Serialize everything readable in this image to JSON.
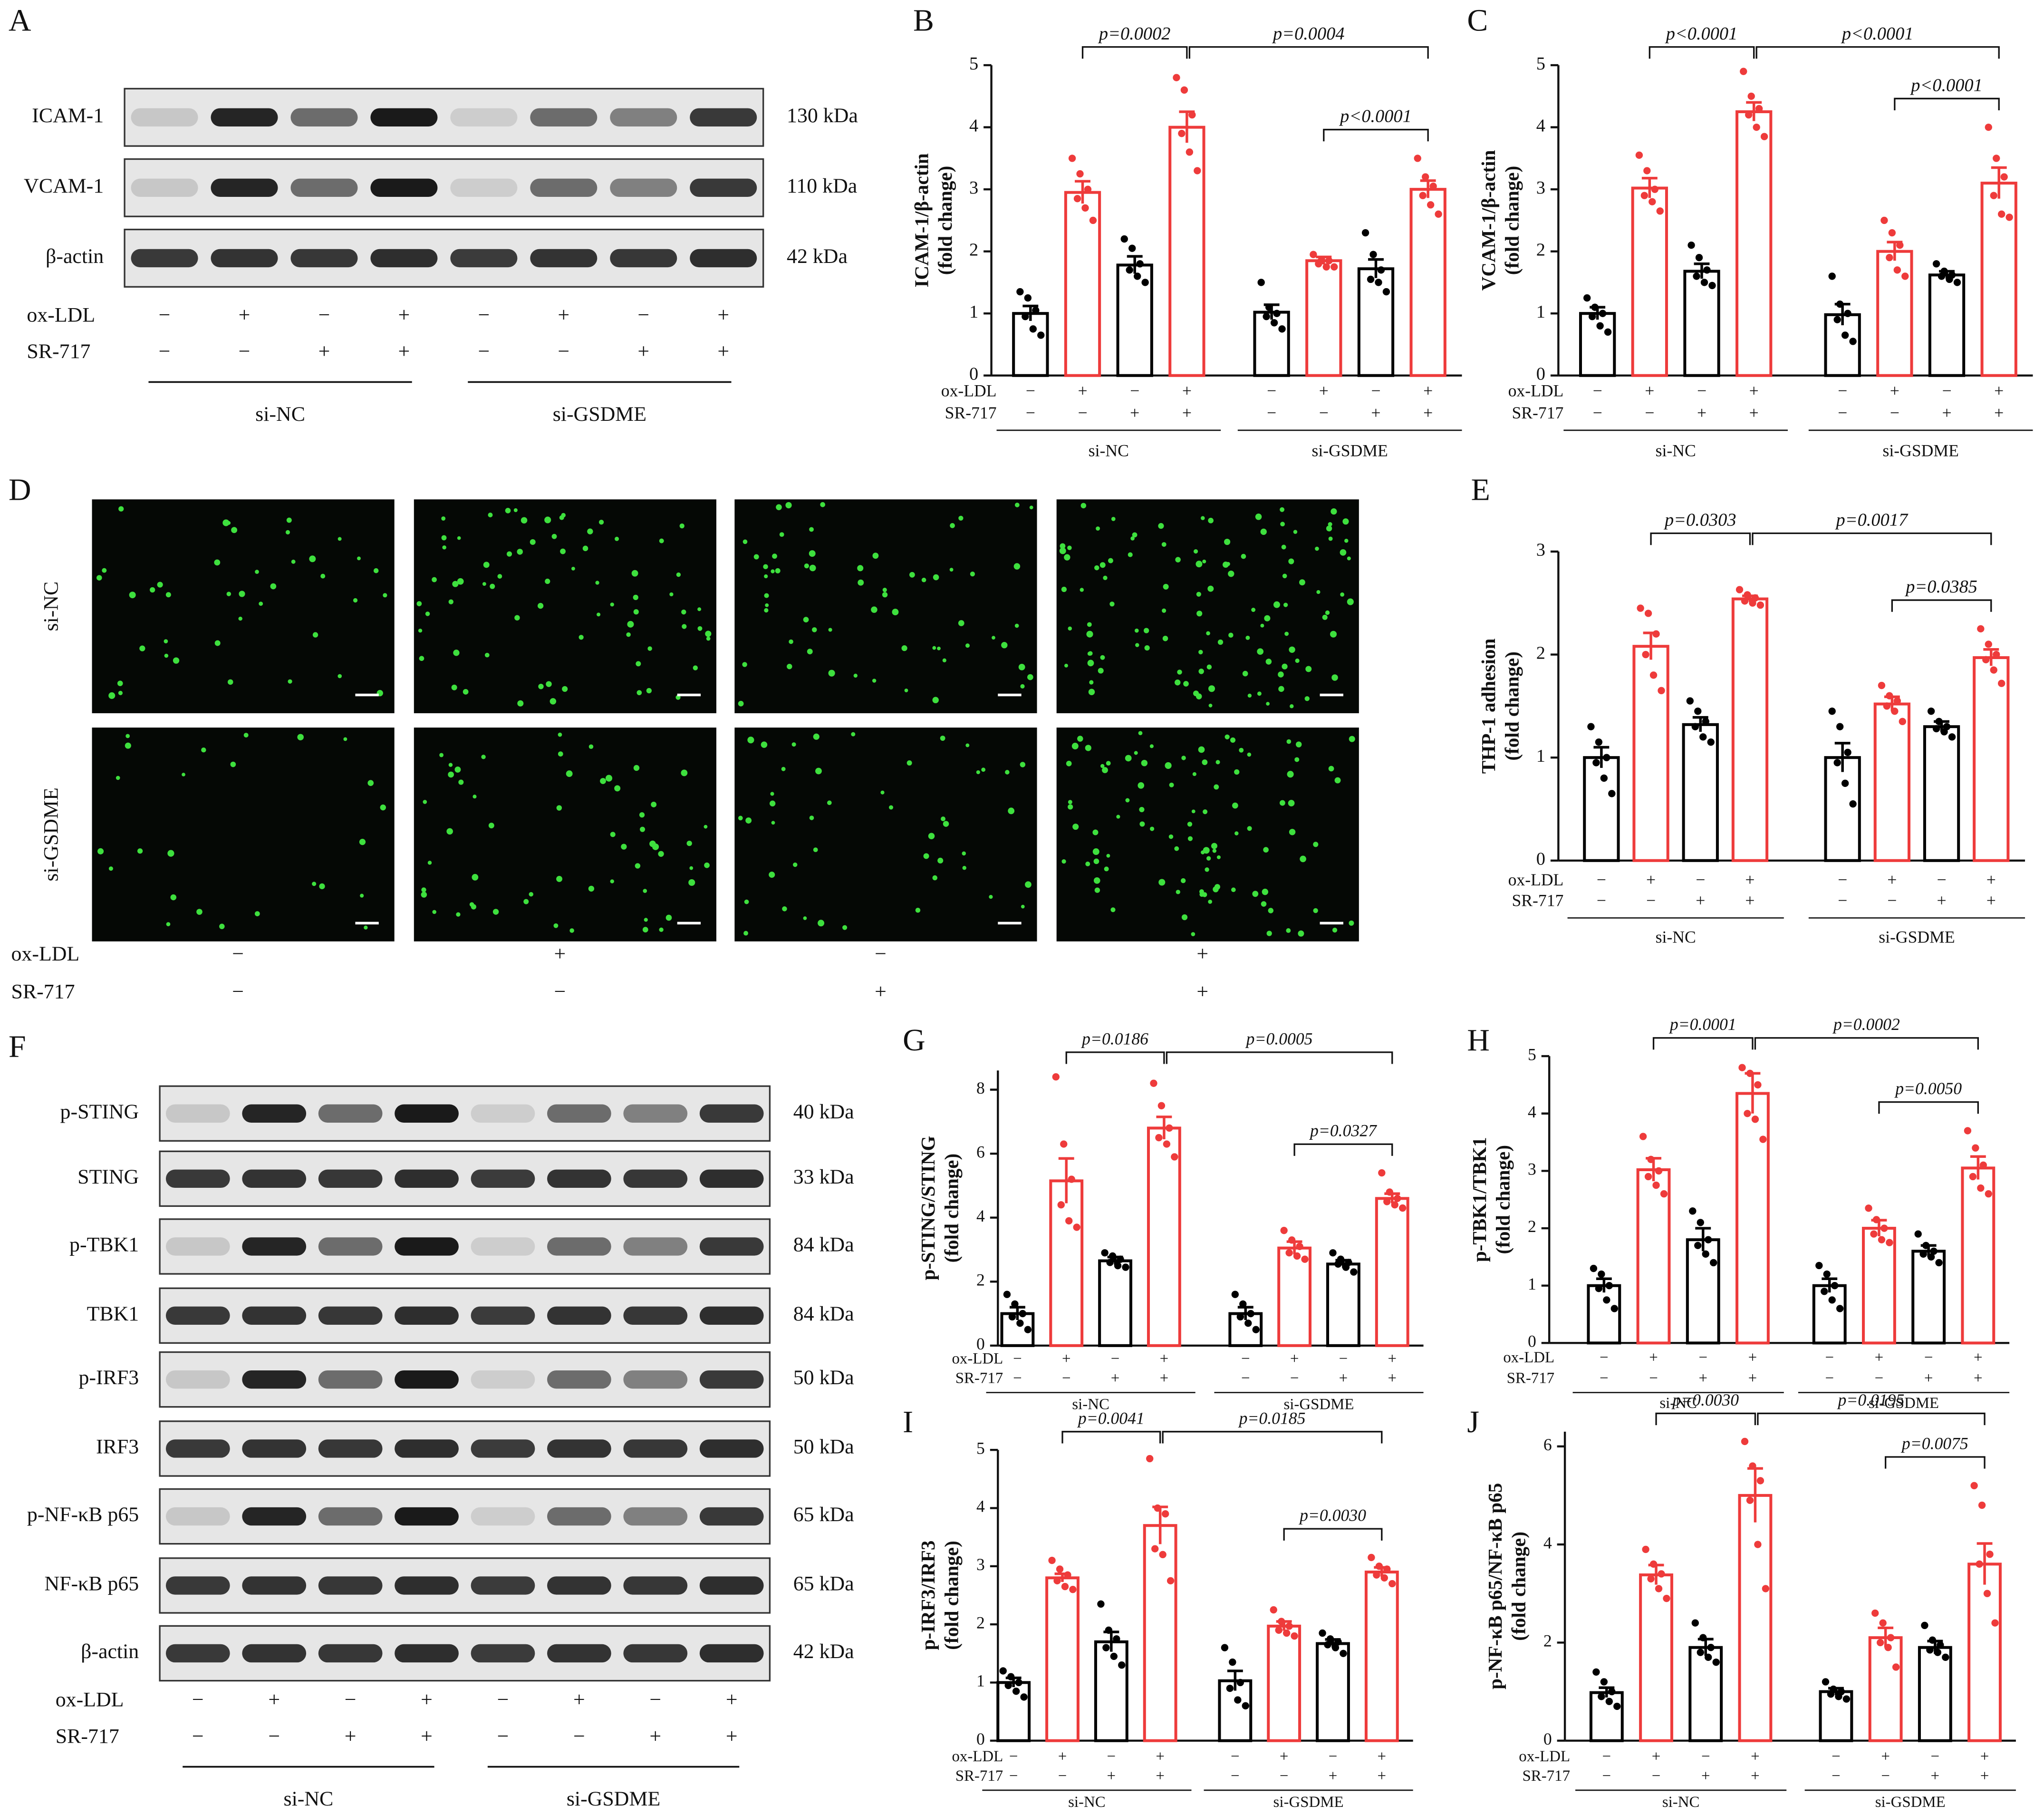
{
  "panel_a": {
    "label": "A",
    "blots": [
      {
        "name": "ICAM-1",
        "size": "130 kDa"
      },
      {
        "name": "VCAM-1",
        "size": "110 kDa"
      },
      {
        "name": "β-actin",
        "size": "42 kDa"
      }
    ],
    "treatments": [
      {
        "name": "ox-LDL",
        "signs": [
          "−",
          "+",
          "−",
          "+",
          "−",
          "+",
          "−",
          "+"
        ]
      },
      {
        "name": "SR-717",
        "signs": [
          "−",
          "−",
          "+",
          "+",
          "−",
          "−",
          "+",
          "+"
        ]
      }
    ],
    "groups": [
      "si-NC",
      "si-GSDME"
    ]
  },
  "panel_d": {
    "label": "D",
    "rows": [
      "si-NC",
      "si-GSDME"
    ],
    "treatments": [
      {
        "name": "ox-LDL",
        "signs": [
          "−",
          "+",
          "−",
          "+"
        ]
      },
      {
        "name": "SR-717",
        "signs": [
          "−",
          "−",
          "+",
          "+"
        ]
      }
    ]
  },
  "panel_f": {
    "label": "F",
    "blots": [
      {
        "name": "p-STING",
        "size": "40 kDa"
      },
      {
        "name": "STING",
        "size": "33 kDa"
      },
      {
        "name": "p-TBK1",
        "size": "84 kDa"
      },
      {
        "name": "TBK1",
        "size": "84 kDa"
      },
      {
        "name": "p-IRF3",
        "size": "50 kDa"
      },
      {
        "name": "IRF3",
        "size": "50 kDa"
      },
      {
        "name": "p-NF-κB p65",
        "size": "65 kDa"
      },
      {
        "name": "NF-κB p65",
        "size": "65 kDa"
      },
      {
        "name": "β-actin",
        "size": "42 kDa"
      }
    ],
    "treatments": [
      {
        "name": "ox-LDL",
        "signs": [
          "−",
          "+",
          "−",
          "+",
          "−",
          "+",
          "−",
          "+"
        ]
      },
      {
        "name": "SR-717",
        "signs": [
          "−",
          "−",
          "+",
          "+",
          "−",
          "−",
          "+",
          "+"
        ]
      }
    ],
    "groups": [
      "si-NC",
      "si-GSDME"
    ]
  },
  "chart_data": [
    {
      "panel": "B",
      "type": "bar",
      "ylabel": [
        "ICAM-1/β-actin",
        "(fold change)"
      ],
      "ylim": [
        0,
        5
      ],
      "yticks": [
        0,
        1,
        2,
        3,
        4,
        5
      ],
      "colors": [
        "#000000",
        "#ee3b3b",
        "#000000",
        "#ee3b3b",
        "#000000",
        "#ee3b3b",
        "#000000",
        "#ee3b3b"
      ],
      "values": [
        1.0,
        2.95,
        1.78,
        4.0,
        1.02,
        1.85,
        1.72,
        3.0
      ],
      "errors": [
        0.12,
        0.18,
        0.14,
        0.25,
        0.12,
        0.06,
        0.15,
        0.14
      ],
      "points": [
        [
          1.35,
          1.25,
          1.05,
          0.95,
          0.75,
          0.65
        ],
        [
          3.5,
          3.25,
          3.0,
          2.85,
          2.7,
          2.5
        ],
        [
          2.2,
          2.05,
          1.8,
          1.7,
          1.6,
          1.5
        ],
        [
          4.8,
          4.6,
          4.2,
          3.9,
          3.6,
          3.3
        ],
        [
          1.5,
          1.1,
          1.0,
          0.95,
          0.85,
          0.75
        ],
        [
          1.95,
          1.85,
          1.85,
          1.8,
          1.75,
          1.75
        ],
        [
          2.3,
          1.95,
          1.7,
          1.55,
          1.5,
          1.35
        ],
        [
          3.5,
          3.2,
          3.05,
          2.9,
          2.75,
          2.6
        ]
      ],
      "treatments": [
        {
          "name": "ox-LDL",
          "signs": [
            "−",
            "+",
            "−",
            "+",
            "−",
            "+",
            "−",
            "+"
          ]
        },
        {
          "name": "SR-717",
          "signs": [
            "−",
            "−",
            "+",
            "+",
            "−",
            "−",
            "+",
            "+"
          ]
        }
      ],
      "groups": [
        "si-NC",
        "si-GSDME"
      ],
      "comparisons": [
        {
          "label": "p=0.0002",
          "bars": [
            1,
            3
          ]
        },
        {
          "label": "p=0.0004",
          "bars": [
            3,
            7
          ]
        },
        {
          "label": "p<0.0001",
          "bars": [
            5,
            7
          ]
        }
      ]
    },
    {
      "panel": "C",
      "type": "bar",
      "ylabel": [
        "VCAM-1/β-actin",
        "(fold change)"
      ],
      "ylim": [
        0,
        5
      ],
      "yticks": [
        0,
        1,
        2,
        3,
        4,
        5
      ],
      "colors": [
        "#000000",
        "#ee3b3b",
        "#000000",
        "#ee3b3b",
        "#000000",
        "#ee3b3b",
        "#000000",
        "#ee3b3b"
      ],
      "values": [
        1.0,
        3.02,
        1.68,
        4.25,
        0.98,
        2.0,
        1.62,
        3.1
      ],
      "errors": [
        0.1,
        0.16,
        0.12,
        0.15,
        0.17,
        0.15,
        0.06,
        0.25
      ],
      "points": [
        [
          1.25,
          1.1,
          1.0,
          0.95,
          0.8,
          0.7
        ],
        [
          3.55,
          3.3,
          3.0,
          2.9,
          2.8,
          2.65
        ],
        [
          2.1,
          1.9,
          1.7,
          1.6,
          1.5,
          1.45
        ],
        [
          4.9,
          4.5,
          4.3,
          4.2,
          4.0,
          3.85
        ],
        [
          1.6,
          1.15,
          1.0,
          0.9,
          0.65,
          0.55
        ],
        [
          2.5,
          2.3,
          2.1,
          1.9,
          1.7,
          1.6
        ],
        [
          1.8,
          1.68,
          1.62,
          1.6,
          1.55,
          1.5
        ],
        [
          4.0,
          3.5,
          3.2,
          2.9,
          2.6,
          2.55
        ]
      ],
      "treatments": [
        {
          "name": "ox-LDL",
          "signs": [
            "−",
            "+",
            "−",
            "+",
            "−",
            "+",
            "−",
            "+"
          ]
        },
        {
          "name": "SR-717",
          "signs": [
            "−",
            "−",
            "+",
            "+",
            "−",
            "−",
            "+",
            "+"
          ]
        }
      ],
      "groups": [
        "si-NC",
        "si-GSDME"
      ],
      "comparisons": [
        {
          "label": "p<0.0001",
          "bars": [
            1,
            3
          ]
        },
        {
          "label": "p<0.0001",
          "bars": [
            3,
            7
          ]
        },
        {
          "label": "p<0.0001",
          "bars": [
            5,
            7
          ]
        }
      ]
    },
    {
      "panel": "E",
      "type": "bar",
      "ylabel": [
        "THP-1 adhesion",
        "(fold change)"
      ],
      "ylim": [
        0,
        3
      ],
      "yticks": [
        0,
        1,
        2,
        3
      ],
      "colors": [
        "#000000",
        "#ee3b3b",
        "#000000",
        "#ee3b3b",
        "#000000",
        "#ee3b3b",
        "#000000",
        "#ee3b3b"
      ],
      "values": [
        1.0,
        2.08,
        1.32,
        2.54,
        1.0,
        1.52,
        1.3,
        1.97
      ],
      "errors": [
        0.1,
        0.13,
        0.07,
        0.03,
        0.14,
        0.07,
        0.05,
        0.08
      ],
      "points": [
        [
          1.3,
          1.15,
          1.0,
          0.95,
          0.8,
          0.65
        ],
        [
          2.45,
          2.4,
          2.2,
          2.0,
          1.8,
          1.65
        ],
        [
          1.55,
          1.45,
          1.35,
          1.3,
          1.2,
          1.15
        ],
        [
          2.63,
          2.58,
          2.55,
          2.52,
          2.5,
          2.48
        ],
        [
          1.45,
          1.3,
          1.05,
          0.95,
          0.75,
          0.55
        ],
        [
          1.7,
          1.6,
          1.55,
          1.5,
          1.45,
          1.35
        ],
        [
          1.45,
          1.35,
          1.3,
          1.28,
          1.25,
          1.2
        ],
        [
          2.25,
          2.1,
          2.0,
          1.95,
          1.85,
          1.72
        ]
      ],
      "treatments": [
        {
          "name": "ox-LDL",
          "signs": [
            "−",
            "+",
            "−",
            "+",
            "−",
            "+",
            "−",
            "+"
          ]
        },
        {
          "name": "SR-717",
          "signs": [
            "−",
            "−",
            "+",
            "+",
            "−",
            "−",
            "+",
            "+"
          ]
        }
      ],
      "groups": [
        "si-NC",
        "si-GSDME"
      ],
      "comparisons": [
        {
          "label": "p=0.0303",
          "bars": [
            1,
            3
          ]
        },
        {
          "label": "p=0.0017",
          "bars": [
            3,
            7
          ]
        },
        {
          "label": "p=0.0385",
          "bars": [
            5,
            7
          ]
        }
      ]
    },
    {
      "panel": "G",
      "type": "bar",
      "ylabel": [
        "p-STING/STING",
        "(fold change)"
      ],
      "ylim": [
        0,
        8.6
      ],
      "yticks": [
        0,
        2,
        4,
        6,
        8
      ],
      "colors": [
        "#000000",
        "#ee3b3b",
        "#000000",
        "#ee3b3b",
        "#000000",
        "#ee3b3b",
        "#000000",
        "#ee3b3b"
      ],
      "values": [
        1.0,
        5.15,
        2.65,
        6.8,
        1.0,
        3.05,
        2.55,
        4.6
      ],
      "errors": [
        0.2,
        0.7,
        0.12,
        0.35,
        0.2,
        0.2,
        0.12,
        0.15
      ],
      "points": [
        [
          1.6,
          1.3,
          1.0,
          0.9,
          0.7,
          0.5
        ],
        [
          8.4,
          6.3,
          5.2,
          4.4,
          3.9,
          3.7
        ],
        [
          2.9,
          2.8,
          2.7,
          2.6,
          2.5,
          2.45
        ],
        [
          8.2,
          7.5,
          6.8,
          6.5,
          6.3,
          5.9
        ],
        [
          1.6,
          1.3,
          1.0,
          0.9,
          0.7,
          0.5
        ],
        [
          3.6,
          3.3,
          3.1,
          2.9,
          2.8,
          2.7
        ],
        [
          2.9,
          2.7,
          2.6,
          2.55,
          2.45,
          2.3
        ],
        [
          5.4,
          4.8,
          4.6,
          4.5,
          4.4,
          4.3
        ]
      ],
      "treatments": [
        {
          "name": "ox-LDL",
          "signs": [
            "−",
            "+",
            "−",
            "+",
            "−",
            "+",
            "−",
            "+"
          ]
        },
        {
          "name": "SR-717",
          "signs": [
            "−",
            "−",
            "+",
            "+",
            "−",
            "−",
            "+",
            "+"
          ]
        }
      ],
      "groups": [
        "si-NC",
        "si-GSDME"
      ],
      "comparisons": [
        {
          "label": "p=0.0186",
          "bars": [
            1,
            3
          ]
        },
        {
          "label": "p=0.0005",
          "bars": [
            3,
            7
          ]
        },
        {
          "label": "p=0.0327",
          "bars": [
            5,
            7
          ]
        }
      ]
    },
    {
      "panel": "H",
      "type": "bar",
      "ylabel": [
        "p-TBK1/TBK1",
        "(fold change)"
      ],
      "ylim": [
        0,
        5
      ],
      "yticks": [
        0,
        1,
        2,
        3,
        4,
        5
      ],
      "colors": [
        "#000000",
        "#ee3b3b",
        "#000000",
        "#ee3b3b",
        "#000000",
        "#ee3b3b",
        "#000000",
        "#ee3b3b"
      ],
      "values": [
        1.0,
        3.02,
        1.8,
        4.35,
        1.0,
        2.0,
        1.6,
        3.05
      ],
      "errors": [
        0.12,
        0.2,
        0.2,
        0.35,
        0.12,
        0.14,
        0.1,
        0.2
      ],
      "points": [
        [
          1.3,
          1.2,
          1.0,
          0.95,
          0.75,
          0.6
        ],
        [
          3.6,
          3.2,
          3.0,
          2.9,
          2.75,
          2.6
        ],
        [
          2.3,
          2.1,
          1.8,
          1.7,
          1.55,
          1.4
        ],
        [
          4.8,
          4.7,
          4.5,
          4.0,
          3.9,
          3.55
        ],
        [
          1.35,
          1.2,
          1.0,
          0.9,
          0.75,
          0.6
        ],
        [
          2.35,
          2.15,
          2.0,
          1.9,
          1.8,
          1.75
        ],
        [
          1.9,
          1.7,
          1.6,
          1.55,
          1.5,
          1.4
        ],
        [
          3.7,
          3.4,
          3.1,
          2.9,
          2.7,
          2.6
        ]
      ],
      "treatments": [
        {
          "name": "ox-LDL",
          "signs": [
            "−",
            "+",
            "−",
            "+",
            "−",
            "+",
            "−",
            "+"
          ]
        },
        {
          "name": "SR-717",
          "signs": [
            "−",
            "−",
            "+",
            "+",
            "−",
            "−",
            "+",
            "+"
          ]
        }
      ],
      "groups": [
        "si-NC",
        "si-GSDME"
      ],
      "comparisons": [
        {
          "label": "p=0.0001",
          "bars": [
            1,
            3
          ]
        },
        {
          "label": "p=0.0002",
          "bars": [
            3,
            7
          ]
        },
        {
          "label": "p=0.0050",
          "bars": [
            5,
            7
          ]
        }
      ]
    },
    {
      "panel": "I",
      "type": "bar",
      "ylabel": [
        "p-IRF3/IRF3",
        "(fold change)"
      ],
      "ylim": [
        0,
        5
      ],
      "yticks": [
        0,
        1,
        2,
        3,
        4,
        5
      ],
      "colors": [
        "#000000",
        "#ee3b3b",
        "#000000",
        "#ee3b3b",
        "#000000",
        "#ee3b3b",
        "#000000",
        "#ee3b3b"
      ],
      "values": [
        1.0,
        2.8,
        1.7,
        3.7,
        1.03,
        1.97,
        1.67,
        2.9
      ],
      "errors": [
        0.08,
        0.07,
        0.17,
        0.32,
        0.17,
        0.08,
        0.07,
        0.08
      ],
      "points": [
        [
          1.2,
          1.1,
          1.0,
          0.95,
          0.85,
          0.75
        ],
        [
          3.1,
          2.95,
          2.85,
          2.75,
          2.65,
          2.6
        ],
        [
          2.35,
          1.9,
          1.75,
          1.6,
          1.45,
          1.3
        ],
        [
          4.85,
          4.0,
          3.9,
          3.3,
          3.2,
          2.75
        ],
        [
          1.6,
          1.35,
          1.0,
          0.9,
          0.7,
          0.6
        ],
        [
          2.25,
          2.05,
          1.97,
          1.9,
          1.85,
          1.8
        ],
        [
          1.85,
          1.75,
          1.7,
          1.65,
          1.6,
          1.5
        ],
        [
          3.15,
          3.0,
          2.95,
          2.85,
          2.8,
          2.7
        ]
      ],
      "treatments": [
        {
          "name": "ox-LDL",
          "signs": [
            "−",
            "+",
            "−",
            "+",
            "−",
            "+",
            "−",
            "+"
          ]
        },
        {
          "name": "SR-717",
          "signs": [
            "−",
            "−",
            "+",
            "+",
            "−",
            "−",
            "+",
            "+"
          ]
        }
      ],
      "groups": [
        "si-NC",
        "si-GSDME"
      ],
      "comparisons": [
        {
          "label": "p=0.0041",
          "bars": [
            1,
            3
          ]
        },
        {
          "label": "p=0.0185",
          "bars": [
            3,
            7
          ]
        },
        {
          "label": "p=0.0030",
          "bars": [
            5,
            7
          ]
        }
      ]
    },
    {
      "panel": "J",
      "type": "bar",
      "ylabel": [
        "p-NF-κB p65/NF-κB p65",
        "(fold change)"
      ],
      "ylim": [
        0,
        6.3
      ],
      "yticks": [
        0,
        2,
        4,
        6
      ],
      "colors": [
        "#000000",
        "#ee3b3b",
        "#000000",
        "#ee3b3b",
        "#000000",
        "#ee3b3b",
        "#000000",
        "#ee3b3b"
      ],
      "values": [
        0.98,
        3.38,
        1.9,
        5.0,
        1.0,
        2.1,
        1.9,
        3.6
      ],
      "errors": [
        0.1,
        0.2,
        0.17,
        0.55,
        0.07,
        0.2,
        0.13,
        0.42
      ],
      "points": [
        [
          1.4,
          1.2,
          1.0,
          0.9,
          0.8,
          0.7
        ],
        [
          3.9,
          3.6,
          3.4,
          3.3,
          3.1,
          2.9
        ],
        [
          2.4,
          2.1,
          1.9,
          1.8,
          1.7,
          1.6
        ],
        [
          6.1,
          5.6,
          5.3,
          4.9,
          4.0,
          3.1
        ],
        [
          1.2,
          1.05,
          1.0,
          0.95,
          0.9,
          0.85
        ],
        [
          2.6,
          2.4,
          2.1,
          2.0,
          1.9,
          1.5
        ],
        [
          2.35,
          2.05,
          1.95,
          1.85,
          1.8,
          1.7
        ],
        [
          5.2,
          4.8,
          3.8,
          3.6,
          3.0,
          2.4
        ]
      ],
      "treatments": [
        {
          "name": "ox-LDL",
          "signs": [
            "−",
            "+",
            "−",
            "+",
            "−",
            "+",
            "−",
            "+"
          ]
        },
        {
          "name": "SR-717",
          "signs": [
            "−",
            "−",
            "+",
            "+",
            "−",
            "−",
            "+",
            "+"
          ]
        }
      ],
      "groups": [
        "si-NC",
        "si-GSDME"
      ],
      "comparisons": [
        {
          "label": "p=0.0030",
          "bars": [
            1,
            3
          ]
        },
        {
          "label": "p=0.0195",
          "bars": [
            3,
            7
          ]
        },
        {
          "label": "p=0.0075",
          "bars": [
            5,
            7
          ]
        }
      ]
    }
  ]
}
